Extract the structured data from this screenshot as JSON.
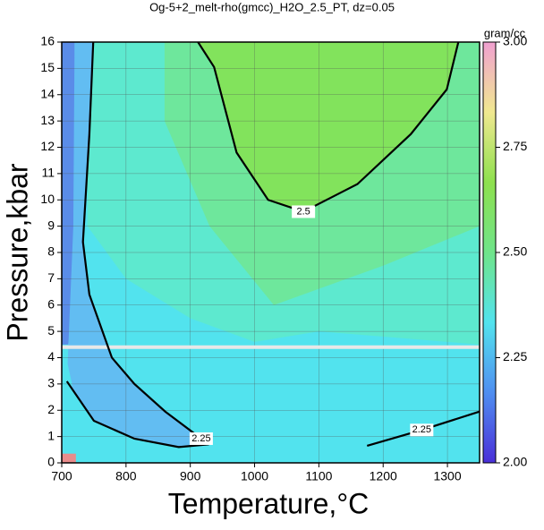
{
  "chart_data": {
    "type": "contour",
    "title": "Og-5+2_melt-rho(gmcc)_H2O_2.5_PT, dz=0.05",
    "xlabel": "Temperature,°C",
    "ylabel": "Pressure,kbar",
    "xlim": [
      700,
      1350
    ],
    "ylim": [
      0,
      16
    ],
    "xticks": [
      700,
      800,
      900,
      1000,
      1100,
      1200,
      1300
    ],
    "yticks": [
      0,
      1,
      2,
      3,
      4,
      5,
      6,
      7,
      8,
      9,
      10,
      11,
      12,
      13,
      14,
      15,
      16
    ],
    "grid": true,
    "hline": 4.4,
    "regions": [
      {
        "color": "#52e3ee",
        "x": [
          700,
          1350,
          1350,
          700
        ],
        "y": [
          0,
          0,
          16,
          16
        ]
      },
      {
        "color": "#5de9cf",
        "x": [
          740,
          1350,
          1350,
          1100,
          1000,
          900,
          800,
          740
        ],
        "y": [
          16,
          16,
          4.5,
          5,
          4.6,
          5.5,
          7,
          9
        ]
      },
      {
        "color": "#6ee79c",
        "x": [
          860,
          1350,
          1350,
          1200,
          1030,
          930,
          860
        ],
        "y": [
          16,
          16,
          9,
          7.5,
          6,
          9,
          13
        ]
      },
      {
        "color": "#82e35c",
        "x": [
          912,
          937,
          972,
          1021,
          1076,
          1160,
          1243,
          1299,
          1317
        ],
        "y": [
          16,
          15.05,
          11.8,
          10,
          9.55,
          10.6,
          12.5,
          14.2,
          16
        ]
      },
      {
        "color": "#5a8ce8",
        "x": [
          700,
          720,
          722,
          718,
          710,
          700
        ],
        "y": [
          16,
          16,
          9,
          6,
          4.5,
          4.5
        ]
      },
      {
        "color": "#62bdf2",
        "x": [
          720,
          749,
          743,
          733,
          743,
          778,
          813,
          861,
          917,
          926,
          882,
          813,
          750,
          722,
          708,
          718
        ],
        "y": [
          16,
          16,
          12.5,
          8.4,
          6.4,
          4,
          3,
          1.95,
          0.92,
          0.7,
          0.6,
          0.92,
          1.6,
          2.6,
          3.1,
          9
        ]
      },
      {
        "color": "#52e3ee",
        "x": [
          700,
          712,
          716,
          707,
          700
        ],
        "y": [
          0.5,
          0.6,
          3,
          4,
          4
        ]
      },
      {
        "color": "#e88c8c",
        "x": [
          700,
          722,
          722,
          700
        ],
        "y": [
          0,
          0,
          0.35,
          0.35
        ]
      }
    ],
    "contours": [
      {
        "level": 2.5,
        "x": [
          912,
          937,
          972,
          1021,
          1076,
          1160,
          1243,
          1299,
          1317
        ],
        "y": [
          16,
          15.05,
          11.8,
          10,
          9.55,
          10.6,
          12.5,
          14.2,
          16
        ]
      },
      {
        "level": 2.25,
        "x": [
          749,
          743,
          733,
          743,
          778,
          813,
          861,
          917,
          926,
          882,
          813,
          750,
          722,
          708
        ],
        "y": [
          16,
          12.5,
          8.4,
          6.4,
          4,
          3,
          1.95,
          0.92,
          0.7,
          0.6,
          0.92,
          1.6,
          2.6,
          3.1
        ]
      },
      {
        "level": 2.25,
        "x": [
          1175,
          1260,
          1350
        ],
        "y": [
          0.65,
          1.25,
          1.95
        ]
      }
    ],
    "colorbar": {
      "label": "gram/cc",
      "lim": [
        2,
        3
      ],
      "ticks": [
        {
          "value": 2,
          "label": "2.00"
        },
        {
          "value": 2.25,
          "label": "2.25"
        },
        {
          "value": 2.5,
          "label": "2.50"
        },
        {
          "value": 2.75,
          "label": "2.75"
        },
        {
          "value": 3,
          "label": "3.00"
        }
      ],
      "colors": [
        "#4a2fd8",
        "#4f8ef0",
        "#52e3ee",
        "#6fe48a",
        "#8ee04e",
        "#f0e890",
        "#f0a0d0"
      ]
    }
  }
}
